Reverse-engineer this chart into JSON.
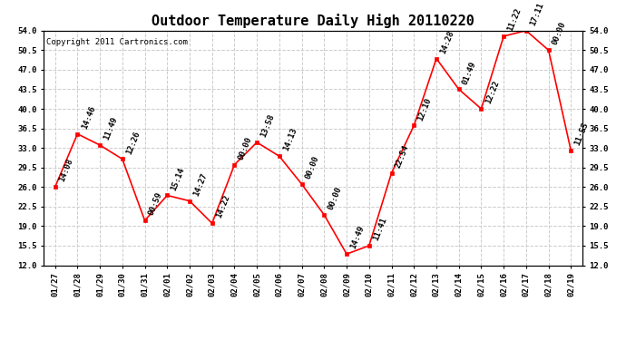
{
  "title": "Outdoor Temperature Daily High 20110220",
  "copyright": "Copyright 2011 Cartronics.com",
  "x_labels": [
    "01/27",
    "01/28",
    "01/29",
    "01/30",
    "01/31",
    "02/01",
    "02/02",
    "02/03",
    "02/04",
    "02/05",
    "02/06",
    "02/07",
    "02/08",
    "02/09",
    "02/10",
    "02/11",
    "02/12",
    "02/13",
    "02/14",
    "02/15",
    "02/16",
    "02/17",
    "02/18",
    "02/19"
  ],
  "y_values": [
    26.0,
    35.5,
    33.5,
    31.0,
    20.0,
    24.5,
    23.5,
    19.5,
    30.0,
    34.0,
    31.5,
    26.5,
    21.0,
    14.0,
    15.5,
    28.5,
    37.0,
    49.0,
    43.5,
    40.0,
    53.0,
    54.0,
    50.5,
    32.5
  ],
  "time_labels": [
    "14:08",
    "14:46",
    "11:49",
    "12:26",
    "00:59",
    "15:14",
    "14:27",
    "14:22",
    "00:00",
    "13:58",
    "14:13",
    "00:00",
    "00:00",
    "14:49",
    "11:41",
    "22:54",
    "12:10",
    "14:28",
    "01:49",
    "12:22",
    "11:22",
    "17:11",
    "00:00",
    "11:55"
  ],
  "line_color": "#ff0000",
  "marker_color": "#ff0000",
  "background_color": "#ffffff",
  "grid_color": "#cccccc",
  "ylim": [
    12.0,
    54.0
  ],
  "yticks": [
    12.0,
    15.5,
    19.0,
    22.5,
    26.0,
    29.5,
    33.0,
    36.5,
    40.0,
    43.5,
    47.0,
    50.5,
    54.0
  ],
  "title_fontsize": 11,
  "annotation_fontsize": 6.5,
  "copyright_fontsize": 6.5
}
